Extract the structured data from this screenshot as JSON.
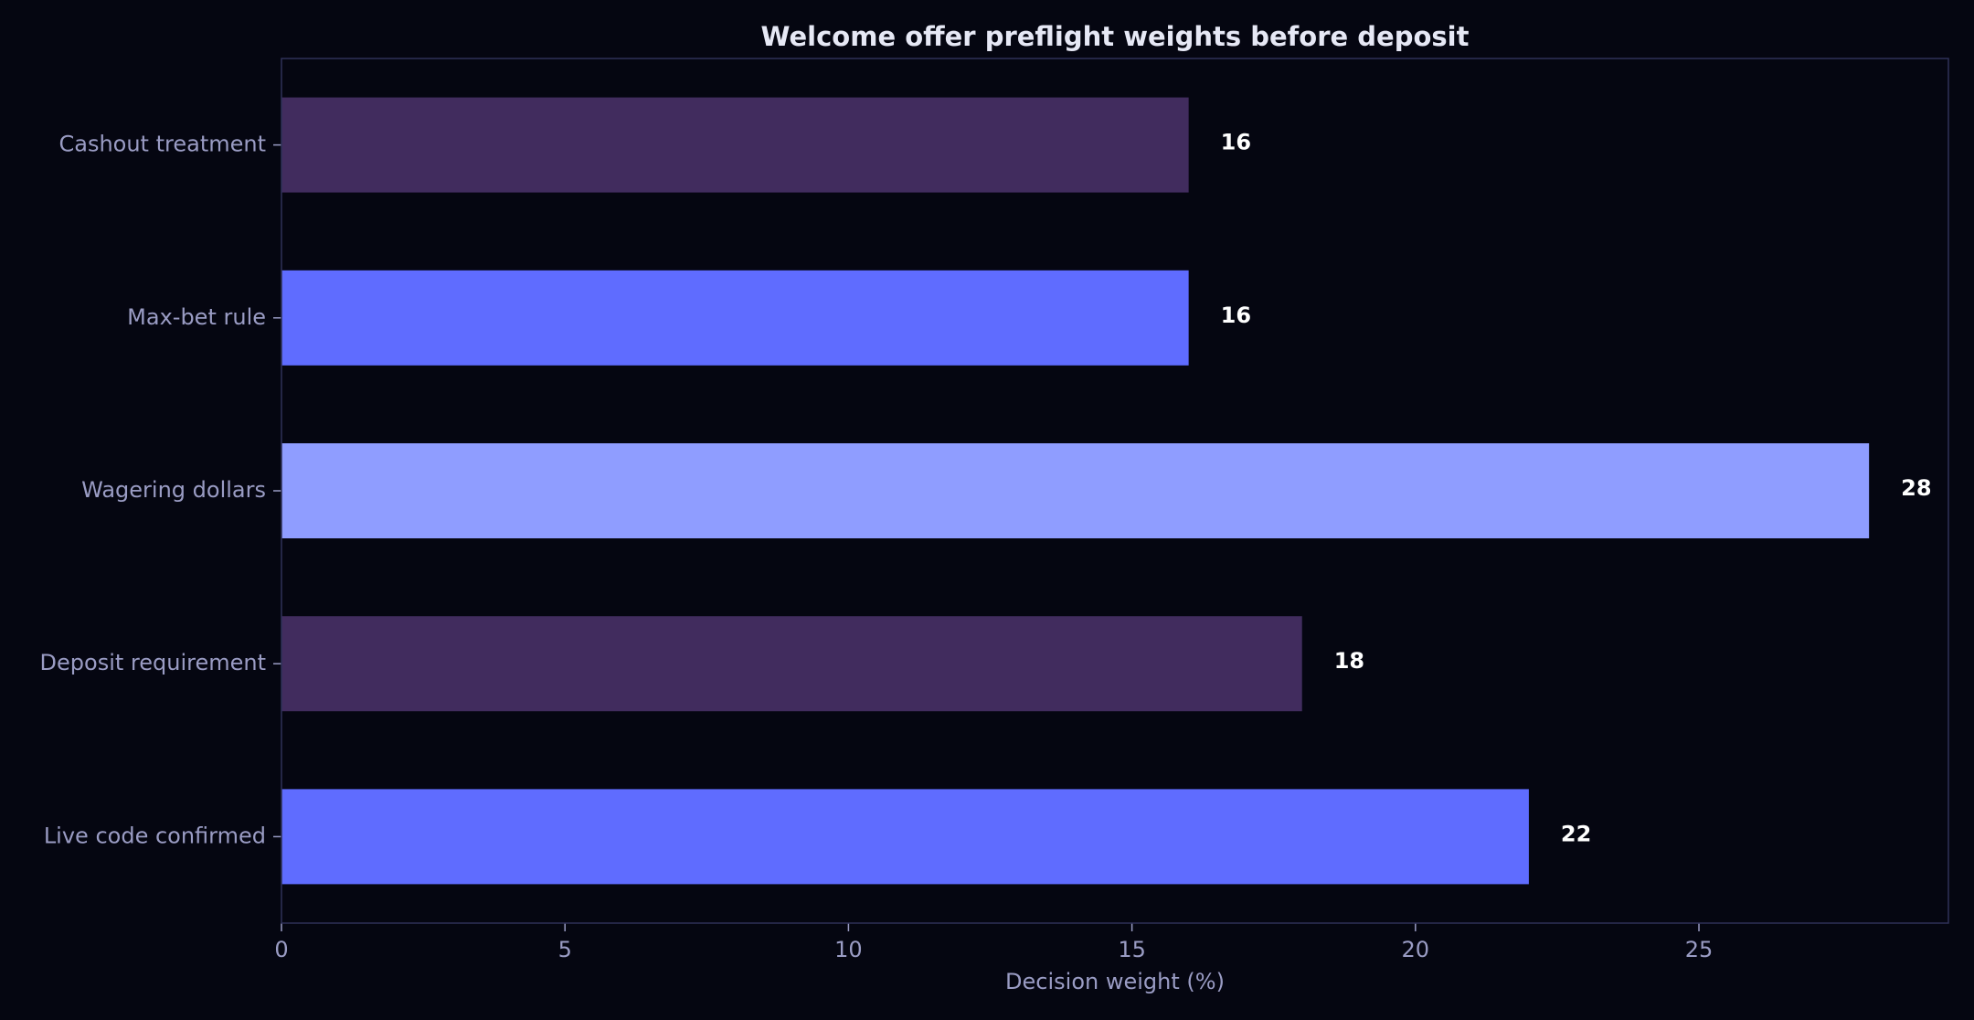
{
  "chart_data": {
    "type": "bar",
    "orientation": "horizontal",
    "title": "Welcome offer preflight weights before deposit",
    "xlabel": "Decision weight (%)",
    "ylabel": "",
    "categories": [
      "Cashout treatment",
      "Max-bet rule",
      "Wagering dollars",
      "Deposit requirement",
      "Live code confirmed"
    ],
    "values": [
      16,
      16,
      28,
      18,
      22
    ],
    "value_labels": [
      "16",
      "16",
      "28",
      "18",
      "22"
    ],
    "bar_colors": [
      "#412c5e",
      "#5f6cff",
      "#8f9dff",
      "#412c5e",
      "#5f6cff"
    ],
    "xlim": [
      0,
      29.4
    ],
    "xticks": [
      0,
      5,
      10,
      15,
      20,
      25
    ],
    "xtick_labels": [
      "0",
      "5",
      "10",
      "15",
      "20",
      "25"
    ],
    "grid": false,
    "legend": "none",
    "colors": {
      "background": "#050611",
      "frame": "#2e3158",
      "text_muted": "#9a9cc4",
      "title": "#e6e8f5",
      "value_label": "#ffffff"
    }
  }
}
